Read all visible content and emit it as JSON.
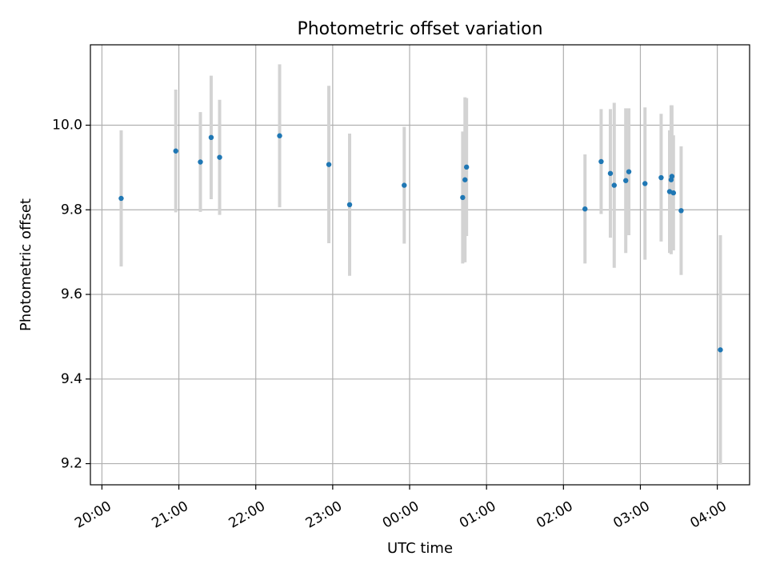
{
  "chart_data": {
    "type": "scatter",
    "title": "Photometric offset variation",
    "xlabel": "UTC time",
    "ylabel": "Photometric offset",
    "x_unit": "hours after 20:00 UTC",
    "xlim": [
      -0.15,
      8.42
    ],
    "ylim": [
      9.15,
      10.19
    ],
    "grid": true,
    "x_ticks": [
      {
        "value": 0,
        "label": "20:00"
      },
      {
        "value": 1,
        "label": "21:00"
      },
      {
        "value": 2,
        "label": "22:00"
      },
      {
        "value": 3,
        "label": "23:00"
      },
      {
        "value": 4,
        "label": "00:00"
      },
      {
        "value": 5,
        "label": "01:00"
      },
      {
        "value": 6,
        "label": "02:00"
      },
      {
        "value": 7,
        "label": "03:00"
      },
      {
        "value": 8,
        "label": "04:00"
      }
    ],
    "y_ticks": [
      {
        "value": 9.2,
        "label": "9.2"
      },
      {
        "value": 9.4,
        "label": "9.4"
      },
      {
        "value": 9.6,
        "label": "9.6"
      },
      {
        "value": 9.8,
        "label": "9.8"
      },
      {
        "value": 10.0,
        "label": "10.0"
      }
    ],
    "colors": {
      "marker": "#1f77b4",
      "errorbar": "#d3d3d3",
      "grid": "#b0b0b0"
    },
    "points": [
      {
        "x": 0.25,
        "y": 9.827,
        "err": 0.161
      },
      {
        "x": 0.96,
        "y": 9.939,
        "err": 0.145
      },
      {
        "x": 1.28,
        "y": 9.913,
        "err": 0.118
      },
      {
        "x": 1.42,
        "y": 9.971,
        "err": 0.146
      },
      {
        "x": 1.53,
        "y": 9.924,
        "err": 0.136
      },
      {
        "x": 2.31,
        "y": 9.975,
        "err": 0.169
      },
      {
        "x": 2.95,
        "y": 9.907,
        "err": 0.186
      },
      {
        "x": 3.22,
        "y": 9.812,
        "err": 0.168
      },
      {
        "x": 3.93,
        "y": 9.858,
        "err": 0.138
      },
      {
        "x": 4.69,
        "y": 9.829,
        "err": 0.156
      },
      {
        "x": 4.72,
        "y": 9.871,
        "err": 0.195
      },
      {
        "x": 4.74,
        "y": 9.901,
        "err": 0.163
      },
      {
        "x": 6.28,
        "y": 9.802,
        "err": 0.129
      },
      {
        "x": 6.49,
        "y": 9.914,
        "err": 0.124
      },
      {
        "x": 6.61,
        "y": 9.886,
        "err": 0.152
      },
      {
        "x": 6.66,
        "y": 9.858,
        "err": 0.195
      },
      {
        "x": 6.81,
        "y": 9.869,
        "err": 0.171
      },
      {
        "x": 6.85,
        "y": 9.89,
        "err": 0.15
      },
      {
        "x": 7.06,
        "y": 9.862,
        "err": 0.18
      },
      {
        "x": 7.27,
        "y": 9.876,
        "err": 0.151
      },
      {
        "x": 7.38,
        "y": 9.843,
        "err": 0.145
      },
      {
        "x": 7.4,
        "y": 9.871,
        "err": 0.176
      },
      {
        "x": 7.41,
        "y": 9.879,
        "err": 0.168
      },
      {
        "x": 7.43,
        "y": 9.84,
        "err": 0.136
      },
      {
        "x": 7.53,
        "y": 9.798,
        "err": 0.152
      },
      {
        "x": 8.04,
        "y": 9.469,
        "err": 0.271
      }
    ]
  }
}
